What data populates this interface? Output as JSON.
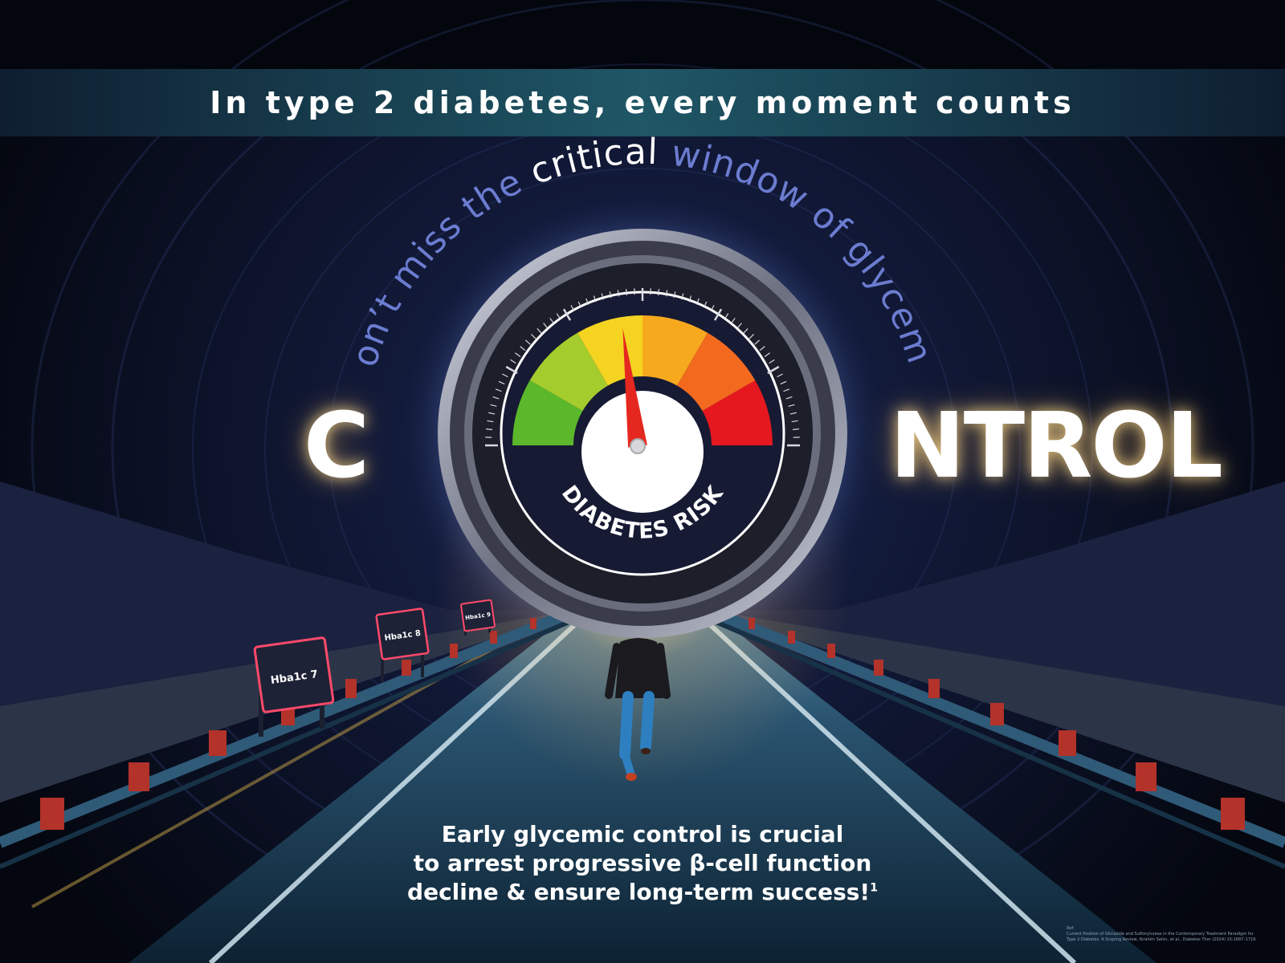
{
  "banner": {
    "text": "In type 2 diabetes, every moment counts"
  },
  "arc_headline": {
    "part1": "Don’t miss the ",
    "emphasis": "critical",
    "part2": " window of glycemic"
  },
  "control_word": {
    "left": "C",
    "right": "NTROL"
  },
  "gauge": {
    "label": "DIABETES RISK",
    "segment_colors": [
      "#5ab82a",
      "#a4cc2c",
      "#f4d321",
      "#f7a91e",
      "#f36a1f",
      "#e5181f"
    ],
    "needle_color": "#e5281f",
    "risk_level_fraction": 0.46
  },
  "signs": [
    {
      "label": "Hba1c 7"
    },
    {
      "label": "Hba1c 8"
    },
    {
      "label": "Hba1c 9"
    }
  ],
  "bottom_message": {
    "line1": "Early glycemic control is crucial",
    "line2": "to arrest progressive β-cell function",
    "line3": "decline & ensure long-term success!",
    "footnote_marker": "1"
  },
  "reference": {
    "heading": "Ref:",
    "line1": "Current Position of Gliclazide and Sulfonylureas in the Contemporary Treatment Paradigm for",
    "line2": "Type 2 Diabetes: A Scoping Review, Ibrahim Sahin, et al., Diabetes Ther (2024) 15:1687–1716"
  }
}
